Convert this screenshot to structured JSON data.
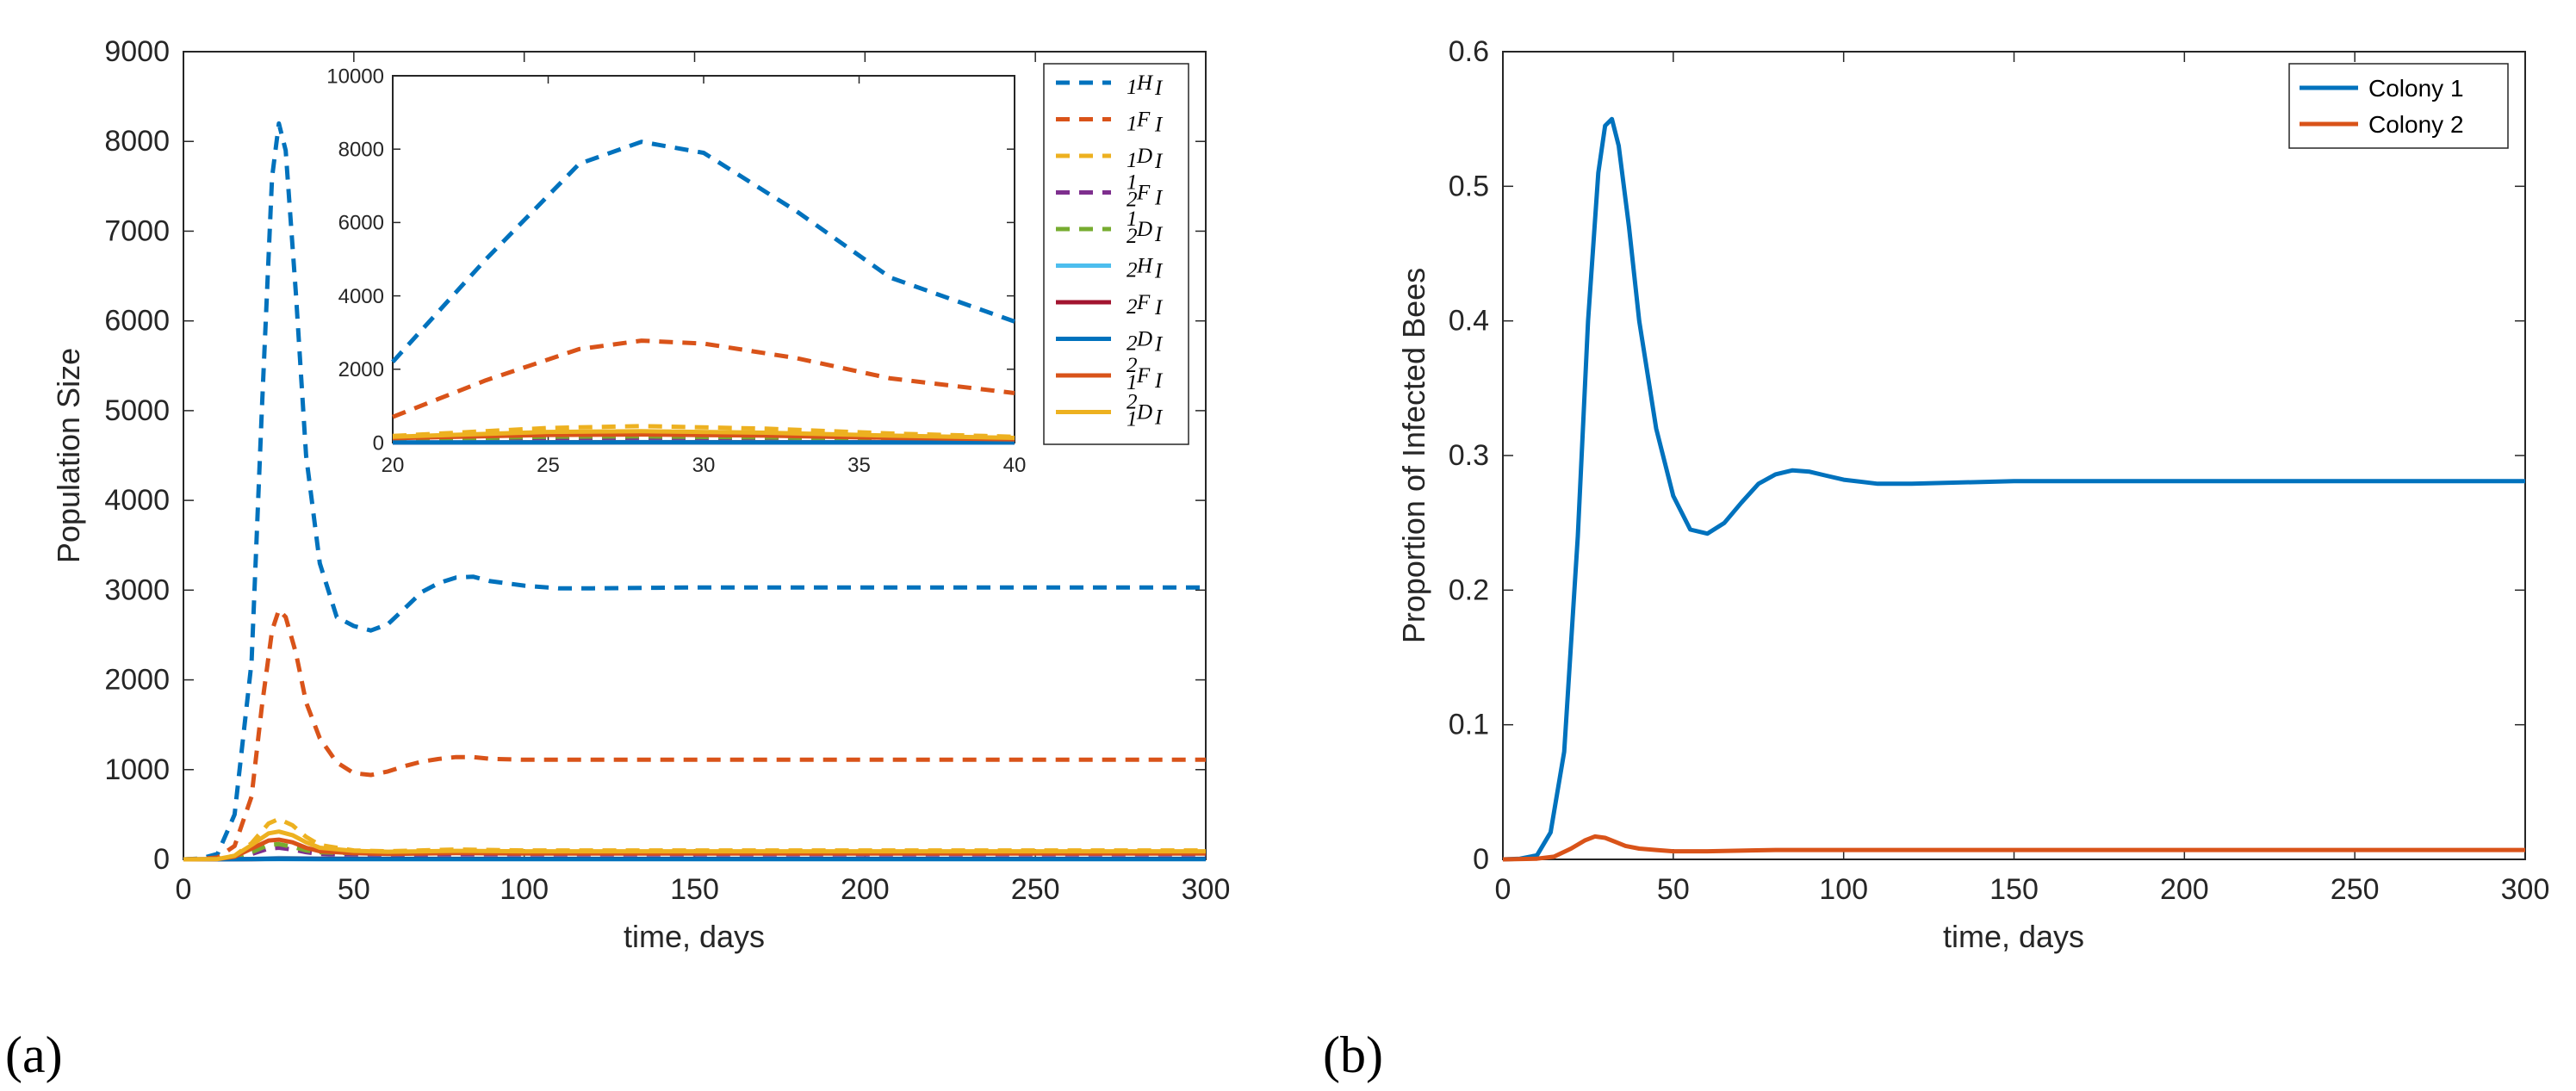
{
  "chart_data": [
    {
      "id": "a",
      "type": "line",
      "panel_label": "(a)",
      "xlabel": "time, days",
      "ylabel": "Population Size",
      "xlim": [
        0,
        300
      ],
      "ylim": [
        0,
        9000
      ],
      "xticks": [
        0,
        50,
        100,
        150,
        200,
        250,
        300
      ],
      "yticks": [
        0,
        1000,
        2000,
        3000,
        4000,
        5000,
        6000,
        7000,
        8000,
        9000
      ],
      "grid": false,
      "legend_position": "top-right",
      "series": [
        {
          "name": "1H_I",
          "legend_pre": "",
          "legend_sup": "",
          "legend_sub": "1",
          "legend_var": "H",
          "legend_varsub": "I",
          "color": "#0072BD",
          "dash": true,
          "x": [
            0,
            5,
            10,
            15,
            20,
            23,
            26,
            28,
            30,
            33,
            36,
            40,
            45,
            50,
            55,
            60,
            65,
            70,
            75,
            80,
            85,
            90,
            100,
            110,
            120,
            150,
            200,
            250,
            300
          ],
          "y": [
            0,
            10,
            60,
            500,
            2200,
            5000,
            7600,
            8200,
            7900,
            6300,
            4500,
            3300,
            2700,
            2600,
            2550,
            2620,
            2800,
            2980,
            3080,
            3140,
            3150,
            3100,
            3050,
            3020,
            3020,
            3030,
            3030,
            3030,
            3030
          ]
        },
        {
          "name": "1F_I",
          "legend_pre": "",
          "legend_sup": "",
          "legend_sub": "1",
          "legend_var": "F",
          "legend_varsub": "I",
          "color": "#D95319",
          "dash": true,
          "x": [
            0,
            5,
            10,
            15,
            20,
            23,
            26,
            28,
            30,
            33,
            36,
            40,
            45,
            50,
            55,
            60,
            65,
            70,
            75,
            80,
            85,
            90,
            100,
            110,
            120,
            150,
            200,
            250,
            300
          ],
          "y": [
            0,
            5,
            20,
            150,
            700,
            1700,
            2550,
            2780,
            2700,
            2300,
            1750,
            1350,
            1080,
            960,
            940,
            980,
            1040,
            1090,
            1120,
            1140,
            1140,
            1120,
            1110,
            1110,
            1110,
            1110,
            1110,
            1110,
            1110
          ]
        },
        {
          "name": "1D_I",
          "legend_pre": "",
          "legend_sup": "",
          "legend_sub": "1",
          "legend_var": "D",
          "legend_varsub": "I",
          "color": "#EDB120",
          "dash": true,
          "x": [
            0,
            10,
            15,
            20,
            25,
            28,
            32,
            36,
            40,
            50,
            60,
            80,
            100,
            150,
            200,
            250,
            300
          ],
          "y": [
            0,
            5,
            40,
            180,
            400,
            450,
            380,
            250,
            160,
            100,
            90,
            110,
            100,
            100,
            100,
            100,
            100
          ]
        },
        {
          "name": "12F_I",
          "legend_pre": "",
          "legend_sup": "1",
          "legend_sub": "2",
          "legend_var": "F",
          "legend_varsub": "I",
          "color": "#7E2F8E",
          "dash": true,
          "x": [
            0,
            10,
            15,
            20,
            25,
            28,
            32,
            36,
            40,
            50,
            60,
            80,
            100,
            150,
            200,
            250,
            300
          ],
          "y": [
            0,
            2,
            15,
            60,
            120,
            130,
            110,
            80,
            60,
            50,
            50,
            55,
            55,
            55,
            55,
            55,
            55
          ]
        },
        {
          "name": "12D_I",
          "legend_pre": "",
          "legend_sup": "1",
          "legend_sub": "2",
          "legend_var": "D",
          "legend_varsub": "I",
          "color": "#77AC30",
          "dash": true,
          "x": [
            0,
            10,
            15,
            20,
            25,
            28,
            32,
            36,
            40,
            50,
            60,
            80,
            100,
            150,
            200,
            250,
            300
          ],
          "y": [
            0,
            2,
            20,
            80,
            160,
            170,
            140,
            100,
            80,
            70,
            65,
            75,
            70,
            70,
            70,
            70,
            70
          ]
        },
        {
          "name": "2H_I",
          "legend_pre": "",
          "legend_sup": "",
          "legend_sub": "2",
          "legend_var": "H",
          "legend_varsub": "I",
          "color": "#4DBEEE",
          "dash": false,
          "x": [
            0,
            20,
            28,
            40,
            60,
            100,
            200,
            300
          ],
          "y": [
            0,
            5,
            15,
            10,
            8,
            8,
            8,
            8
          ]
        },
        {
          "name": "2F_I",
          "legend_pre": "",
          "legend_sup": "",
          "legend_sub": "2",
          "legend_var": "F",
          "legend_varsub": "I",
          "color": "#A2142F",
          "dash": false,
          "x": [
            0,
            20,
            28,
            40,
            60,
            100,
            200,
            300
          ],
          "y": [
            0,
            3,
            8,
            6,
            5,
            5,
            5,
            5
          ]
        },
        {
          "name": "2D_I",
          "legend_pre": "",
          "legend_sup": "",
          "legend_sub": "2",
          "legend_var": "D",
          "legend_varsub": "I",
          "color": "#0072BD",
          "dash": false,
          "x": [
            0,
            20,
            28,
            40,
            60,
            100,
            200,
            300
          ],
          "y": [
            0,
            2,
            4,
            3,
            2,
            2,
            2,
            2
          ]
        },
        {
          "name": "21F_I",
          "legend_pre": "",
          "legend_sup": "2",
          "legend_sub": "1",
          "legend_var": "F",
          "legend_varsub": "I",
          "color": "#D95319",
          "dash": false,
          "x": [
            0,
            10,
            15,
            20,
            25,
            28,
            32,
            36,
            40,
            50,
            60,
            80,
            100,
            150,
            200,
            250,
            300
          ],
          "y": [
            0,
            3,
            30,
            120,
            210,
            220,
            190,
            130,
            90,
            70,
            60,
            70,
            65,
            65,
            65,
            65,
            65
          ]
        },
        {
          "name": "21D_I",
          "legend_pre": "",
          "legend_sup": "2",
          "legend_sub": "1",
          "legend_var": "D",
          "legend_varsub": "I",
          "color": "#EDB120",
          "dash": false,
          "x": [
            0,
            10,
            15,
            20,
            25,
            28,
            32,
            36,
            40,
            50,
            60,
            80,
            100,
            150,
            200,
            250,
            300
          ],
          "y": [
            0,
            4,
            40,
            160,
            290,
            310,
            270,
            190,
            130,
            95,
            85,
            95,
            90,
            90,
            90,
            90,
            90
          ]
        }
      ],
      "inset": {
        "xlim": [
          20,
          40
        ],
        "ylim": [
          0,
          10000
        ],
        "xticks": [
          20,
          25,
          30,
          35,
          40
        ],
        "yticks": [
          0,
          2000,
          4000,
          6000,
          8000,
          10000
        ]
      }
    },
    {
      "id": "b",
      "type": "line",
      "panel_label": "(b)",
      "xlabel": "time, days",
      "ylabel": "Proportion of Infected Bees",
      "xlim": [
        0,
        300
      ],
      "ylim": [
        0,
        0.6
      ],
      "xticks": [
        0,
        50,
        100,
        150,
        200,
        250,
        300
      ],
      "yticks": [
        0,
        0.1,
        0.2,
        0.3,
        0.4,
        0.5,
        0.6
      ],
      "grid": false,
      "legend_position": "top-right",
      "series": [
        {
          "name": "Colony 1",
          "color": "#0072BD",
          "x": [
            0,
            5,
            10,
            14,
            18,
            22,
            25,
            28,
            30,
            32,
            34,
            37,
            40,
            45,
            50,
            55,
            60,
            65,
            70,
            75,
            80,
            85,
            90,
            95,
            100,
            110,
            120,
            150,
            200,
            250,
            300
          ],
          "y": [
            0,
            0.0005,
            0.003,
            0.02,
            0.08,
            0.24,
            0.4,
            0.51,
            0.545,
            0.55,
            0.53,
            0.47,
            0.4,
            0.32,
            0.27,
            0.245,
            0.242,
            0.25,
            0.265,
            0.279,
            0.286,
            0.289,
            0.288,
            0.285,
            0.282,
            0.279,
            0.279,
            0.281,
            0.281,
            0.281,
            0.281
          ]
        },
        {
          "name": "Colony 2",
          "color": "#D95319",
          "x": [
            0,
            10,
            15,
            20,
            24,
            27,
            30,
            33,
            36,
            40,
            45,
            50,
            60,
            80,
            100,
            150,
            200,
            250,
            300
          ],
          "y": [
            0,
            0.0005,
            0.002,
            0.008,
            0.014,
            0.017,
            0.016,
            0.013,
            0.01,
            0.008,
            0.007,
            0.006,
            0.006,
            0.007,
            0.007,
            0.007,
            0.007,
            0.007,
            0.007
          ]
        }
      ]
    }
  ]
}
